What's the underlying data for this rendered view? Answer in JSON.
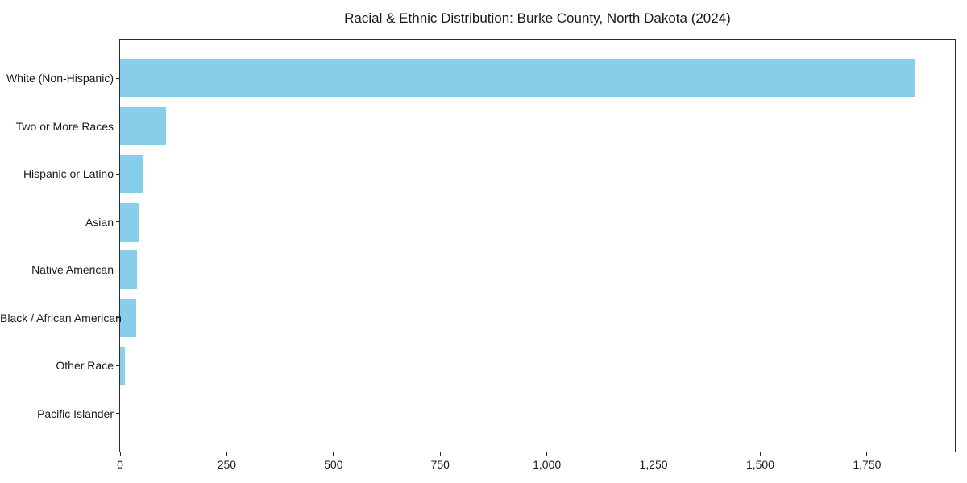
{
  "chart_data": {
    "type": "bar",
    "orientation": "horizontal",
    "title": "Racial & Ethnic Distribution: Burke County, North Dakota (2024)",
    "categories": [
      "White (Non-Hispanic)",
      "Two or More Races",
      "Hispanic or Latino",
      "Asian",
      "Native American",
      "Black / African American",
      "Other Race",
      "Pacific Islander"
    ],
    "values": [
      1863,
      108,
      53,
      43,
      40,
      37,
      12,
      0
    ],
    "xlabel": "",
    "ylabel": "",
    "xlim": [
      0,
      1956
    ],
    "x_ticks": [
      0,
      250,
      500,
      750,
      1000,
      1250,
      1500,
      1750
    ],
    "x_tick_labels": [
      "0",
      "250",
      "500",
      "750",
      "1,000",
      "1,250",
      "1,500",
      "1,750"
    ],
    "bar_color": "#87CEEB",
    "spine_color": "#2b2b2b",
    "grid": false,
    "legend": null
  }
}
